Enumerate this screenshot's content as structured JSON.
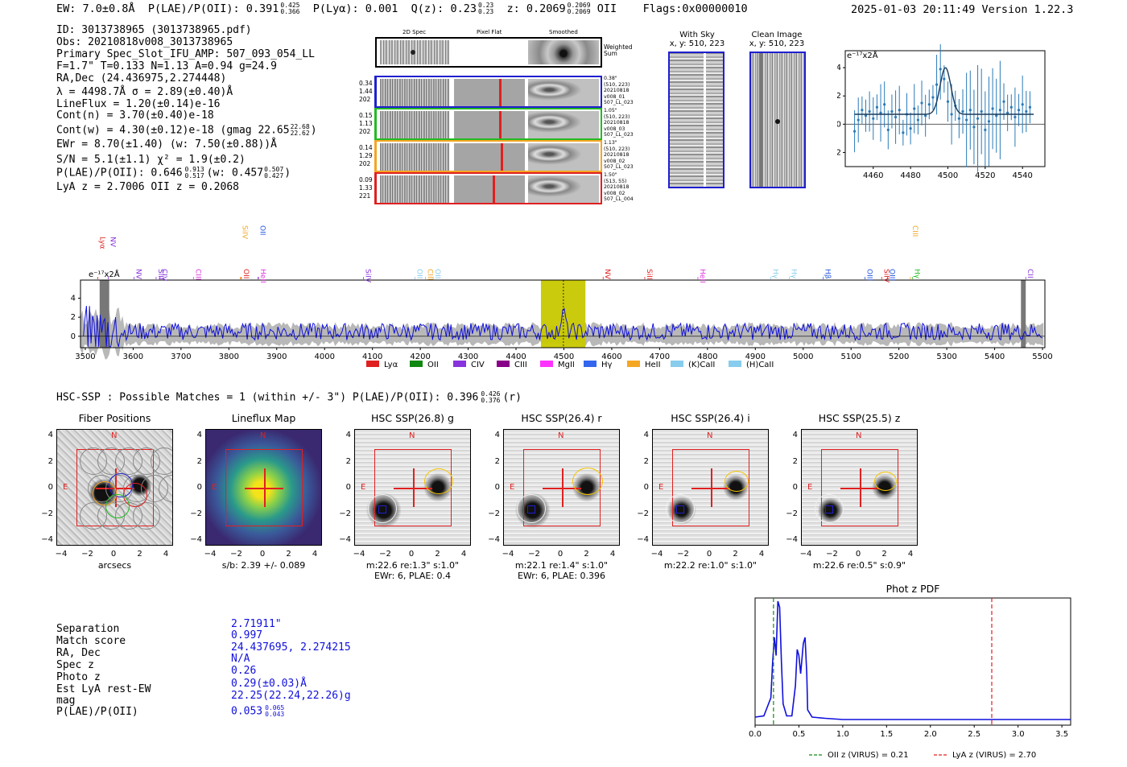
{
  "header": {
    "ew": "EW: 7.0±0.8Å",
    "plae": "P(LAE)/P(OII): 0.391",
    "plae_hi": "0.425",
    "plae_lo": "0.366",
    "plya": "P(Lyα): 0.001",
    "qz": "Q(z): 0.23",
    "qz_hi": "0.23",
    "qz_lo": "0.23",
    "z": "z: 0.2069",
    "z_hi": "0.2069",
    "z_lo": "0.2069",
    "z_line": "OII",
    "flags": "Flags:0x00000010",
    "timestamp": "2025-01-03 20:11:49  Version 1.22.3"
  },
  "info": {
    "lines": [
      "ID: 3013738965 (3013738965.pdf)",
      "Obs: 20210818v008_3013738965",
      "Primary Spec_Slot_IFU_AMP: 507_093_054_LL",
      "F=1.7\"  T=0.133  N=1.13  A=0.94  g=24.9",
      "RA,Dec (24.436975,2.274448)",
      "λ = 4498.7Å   σ = 2.89(±0.40)Å",
      "LineFlux = 1.20(±0.14)e-16",
      "Cont(n) = 3.70(±0.40)e-18"
    ],
    "contw": "Cont(w) = 4.30(±0.12)e-18 (gmag 22.65",
    "contw_hi": "22.68",
    "contw_lo": "22.62",
    "contw_end": ")",
    "ewr": "EWr = 8.70(±1.40) (w: 7.50(±0.88))Å",
    "sn": "S/N = 5.1(±1.1)  χ² = 1.9(±0.2)",
    "plae2": "P(LAE)/P(OII): 0.646",
    "plae2_hi": "0.913",
    "plae2_lo": "0.517",
    "plae2_w": "(w: 0.457",
    "plae2_w_hi": "0.507",
    "plae2_w_lo": "0.427",
    "plae2_end": ")",
    "lyaz": "LyA z = 2.7006  OII z = 0.2068"
  },
  "fiber_panel": {
    "col_labels": [
      "2D Spec",
      "Pixel Flat",
      "Smoothed"
    ],
    "weighted_label": "Weighted Sum",
    "rows": [
      {
        "left": [
          "0.34",
          "1.44",
          "202"
        ],
        "right": [
          "0.38\"",
          "(510, 223)",
          "20210818",
          "v008_01",
          "507_LL_023"
        ],
        "color": "#1f1fd0"
      },
      {
        "left": [
          "0.15",
          "1.13",
          "202"
        ],
        "right": [
          "1.05\"",
          "(510, 223)",
          "20210818",
          "v008_03",
          "507_LL_023"
        ],
        "color": "#22bb22"
      },
      {
        "left": [
          "0.14",
          "1.29",
          "202"
        ],
        "right": [
          "1.13\"",
          "(510, 223)",
          "20210818",
          "v008_02",
          "507_LL_023"
        ],
        "color": "#f5a623"
      },
      {
        "left": [
          "0.09",
          "1.33",
          "221"
        ],
        "right": [
          "1.50\"",
          "(513, 55)",
          "20210818",
          "v008_02",
          "507_LL_004"
        ],
        "color": "#e02020"
      }
    ]
  },
  "sky": {
    "title": "With Sky",
    "coords": "x, y: 510, 223"
  },
  "clean": {
    "title": "Clean Image",
    "coords": "x, y: 510, 223"
  },
  "zoom_chart": {
    "type": "scatter",
    "ylabel": "e⁻¹⁷x2Å",
    "x_ticks": [
      "4460",
      "4480",
      "4500",
      "4520",
      "4540"
    ],
    "y_ticks": [
      "4",
      "2",
      "0",
      "−2"
    ],
    "xlim": [
      4445,
      4552
    ],
    "ylim": [
      -3,
      5.2
    ],
    "points": [
      [
        4450,
        -0.5
      ],
      [
        4452,
        0.3
      ],
      [
        4454,
        1.0
      ],
      [
        4456,
        0.6
      ],
      [
        4458,
        0.9
      ],
      [
        4460,
        0.4
      ],
      [
        4462,
        1.2
      ],
      [
        4464,
        0.8
      ],
      [
        4466,
        1.4
      ],
      [
        4468,
        -0.4
      ],
      [
        4470,
        0.9
      ],
      [
        4472,
        0.5
      ],
      [
        4474,
        1.0
      ],
      [
        4476,
        -0.6
      ],
      [
        4478,
        0.7
      ],
      [
        4480,
        -0.3
      ],
      [
        4482,
        1.1
      ],
      [
        4484,
        0.3
      ],
      [
        4486,
        1.5
      ],
      [
        4488,
        0.6
      ],
      [
        4490,
        1.4
      ],
      [
        4492,
        1.9
      ],
      [
        4494,
        2.8
      ],
      [
        4496,
        3.9
      ],
      [
        4498,
        3.2
      ],
      [
        4500,
        1.6
      ],
      [
        4502,
        0.7
      ],
      [
        4504,
        1.3
      ],
      [
        4506,
        0.4
      ],
      [
        4508,
        0.9
      ],
      [
        4510,
        0.3
      ],
      [
        4512,
        1.0
      ],
      [
        4514,
        -0.2
      ],
      [
        4516,
        0.4
      ],
      [
        4518,
        0.9
      ],
      [
        4520,
        -0.4
      ],
      [
        4522,
        0.2
      ],
      [
        4524,
        1.1
      ],
      [
        4526,
        0.6
      ],
      [
        4528,
        1.0
      ],
      [
        4530,
        1.6
      ],
      [
        4532,
        0.8
      ],
      [
        4534,
        1.2
      ],
      [
        4536,
        0.5
      ],
      [
        4538,
        1.0
      ],
      [
        4540,
        1.4
      ],
      [
        4542,
        0.9
      ],
      [
        4544,
        1.2
      ]
    ],
    "continuum": 0.7,
    "gauss_peak": 4498.7,
    "gauss_amp": 3.3,
    "gauss_sigma": 2.9
  },
  "full_spectrum": {
    "type": "line",
    "ylabel": "e⁻¹⁷x2Å",
    "x_ticks": [
      "3500",
      "3600",
      "3700",
      "3800",
      "3900",
      "4000",
      "4100",
      "4200",
      "4300",
      "4400",
      "4500",
      "4600",
      "4700",
      "4800",
      "4900",
      "5000",
      "5100",
      "5200",
      "5300",
      "5400",
      "5500"
    ],
    "y_ticks": [
      "4",
      "2",
      "0"
    ],
    "xlim": [
      3490,
      5505
    ],
    "ylim": [
      -1.2,
      5.9
    ],
    "highlight_range": [
      4452,
      4545
    ],
    "line_markers": [
      {
        "name": "Lyα",
        "x": 3526,
        "color": "#e02020",
        "row": 1
      },
      {
        "name": "NV",
        "x": 3548,
        "color": "#8833dd",
        "row": 1
      },
      {
        "name": "NV",
        "x": 3602,
        "color": "#8833dd",
        "row": 2
      },
      {
        "name": "SiII",
        "x": 3648,
        "color": "#8833dd",
        "row": 2
      },
      {
        "name": "CIV",
        "x": 3656,
        "color": "#8833dd",
        "row": 2
      },
      {
        "name": "CIII",
        "x": 3726,
        "color": "#dd33dd",
        "row": 2
      },
      {
        "name": "SiIV",
        "x": 3824,
        "color": "#f5a623",
        "row": 0
      },
      {
        "name": "OII",
        "x": 3826,
        "color": "#e02020",
        "row": 2
      },
      {
        "name": "OII",
        "x": 3861,
        "color": "#2255dd",
        "row": 0
      },
      {
        "name": "HeII",
        "x": 3862,
        "color": "#dd33dd",
        "row": 2
      },
      {
        "name": "SiIV",
        "x": 4081,
        "color": "#8833dd",
        "row": 2
      },
      {
        "name": "OII",
        "x": 4189,
        "color": "#88ccee",
        "row": 2
      },
      {
        "name": "CIII",
        "x": 4211,
        "color": "#f5a623",
        "row": 2
      },
      {
        "name": "OII",
        "x": 4227,
        "color": "#88ccee",
        "row": 2
      },
      {
        "name": "NV",
        "x": 4582,
        "color": "#e02020",
        "row": 2
      },
      {
        "name": "SiII",
        "x": 4669,
        "color": "#e02020",
        "row": 2
      },
      {
        "name": "HeII",
        "x": 4780,
        "color": "#dd33dd",
        "row": 2
      },
      {
        "name": "Hγ",
        "x": 4932,
        "color": "#88ccee",
        "row": 2
      },
      {
        "name": "Hγ",
        "x": 4971,
        "color": "#88ccee",
        "row": 2
      },
      {
        "name": "Hβ",
        "x": 5042,
        "color": "#2255dd",
        "row": 2
      },
      {
        "name": "OIII",
        "x": 5129,
        "color": "#2255dd",
        "row": 2
      },
      {
        "name": "SiIV",
        "x": 5164,
        "color": "#e02020",
        "row": 2
      },
      {
        "name": "OIII",
        "x": 5176,
        "color": "#2255dd",
        "row": 2
      },
      {
        "name": "CIII",
        "x": 5224,
        "color": "#f5a623",
        "row": 0
      },
      {
        "name": "Hγ",
        "x": 5228,
        "color": "#22bb22",
        "row": 2
      },
      {
        "name": "CII",
        "x": 5465,
        "color": "#8833dd",
        "row": 2
      }
    ],
    "legend": [
      {
        "name": "Lyα",
        "color": "#e02020"
      },
      {
        "name": "OII",
        "color": "#118811"
      },
      {
        "name": "CIV",
        "color": "#8833dd"
      },
      {
        "name": "CIII",
        "color": "#880088"
      },
      {
        "name": "MgII",
        "color": "#ff33ff"
      },
      {
        "name": "Hγ",
        "color": "#3366ee"
      },
      {
        "name": "HeII",
        "color": "#f5a623"
      },
      {
        "name": "(K)CaII",
        "color": "#88ccee"
      },
      {
        "name": "(H)CaII",
        "color": "#88ccee"
      }
    ]
  },
  "hsc": {
    "summary": "HSC-SSP : Possible Matches = 1 (within +/- 3\")  P(LAE)/P(OII): 0.396",
    "summary_hi": "0.426",
    "summary_lo": "0.376",
    "summary_band": "(r)",
    "panels": [
      {
        "title": "Fiber Positions",
        "cap1": "arcsecs",
        "cap2": ""
      },
      {
        "title": "Lineflux Map",
        "cap1": "s/b: 2.39 +/- 0.089",
        "cap2": ""
      },
      {
        "title": "HSC SSP(26.8) g",
        "cap1": "m:22.6  re:1.3\"  s:1.0\"",
        "cap2": "EWr: 6, PLAE: 0.4"
      },
      {
        "title": "HSC SSP(26.4) r",
        "cap1": "m:22.1  re:1.4\"  s:1.0\"",
        "cap2": "EWr: 6, PLAE: 0.396"
      },
      {
        "title": "HSC SSP(26.4) i",
        "cap1": "m:22.2  re:1.0\"  s:1.0\"",
        "cap2": ""
      },
      {
        "title": "HSC SSP(25.5) z",
        "cap1": "m:22.6  re:0.5\"  s:0.9\"",
        "cap2": ""
      }
    ],
    "ticks": [
      "4",
      "2",
      "0",
      "−2",
      "−4"
    ],
    "xticks": [
      "−4",
      "−2",
      "0",
      "2",
      "4"
    ],
    "n_label": "N",
    "e_label": "E"
  },
  "match": {
    "labels": [
      "Separation",
      "Match score",
      "RA, Dec",
      "Spec z",
      "Photo z",
      "Est LyA rest-EW",
      "mag",
      "P(LAE)/P(OII)"
    ],
    "values": [
      "2.71911\"",
      "0.997",
      "24.437695, 2.274215",
      "N/A",
      "0.26",
      "0.29(±0.03)Å",
      "22.25(22.24,22.26)g",
      "0.053"
    ],
    "plae_hi": "0.065",
    "plae_lo": "0.043"
  },
  "photz": {
    "type": "line",
    "title": "Phot z PDF",
    "x_ticks": [
      "0.0",
      "0.5",
      "1.0",
      "1.5",
      "2.0",
      "2.5",
      "3.0",
      "3.5"
    ],
    "xlim": [
      0,
      3.6
    ],
    "oii_z": 0.21,
    "lya_z": 2.7,
    "legend_oii": "OII z (VIRUS) = 0.21",
    "legend_lya": "LyA z (VIRUS) = 2.70",
    "pdf": [
      [
        0,
        0.04
      ],
      [
        0.1,
        0.05
      ],
      [
        0.18,
        0.2
      ],
      [
        0.2,
        0.5
      ],
      [
        0.22,
        0.7
      ],
      [
        0.24,
        0.55
      ],
      [
        0.26,
        1.0
      ],
      [
        0.28,
        0.95
      ],
      [
        0.3,
        0.5
      ],
      [
        0.32,
        0.15
      ],
      [
        0.36,
        0.05
      ],
      [
        0.42,
        0.05
      ],
      [
        0.46,
        0.3
      ],
      [
        0.48,
        0.6
      ],
      [
        0.5,
        0.55
      ],
      [
        0.52,
        0.4
      ],
      [
        0.55,
        0.65
      ],
      [
        0.57,
        0.7
      ],
      [
        0.59,
        0.4
      ],
      [
        0.6,
        0.1
      ],
      [
        0.65,
        0.04
      ],
      [
        0.8,
        0.03
      ],
      [
        1.0,
        0.02
      ],
      [
        3.6,
        0.02
      ]
    ]
  },
  "colors": {
    "blue": "#1010dd",
    "red": "#e02020",
    "yellow": "#c8c800",
    "grey": "#b0b0b0"
  }
}
